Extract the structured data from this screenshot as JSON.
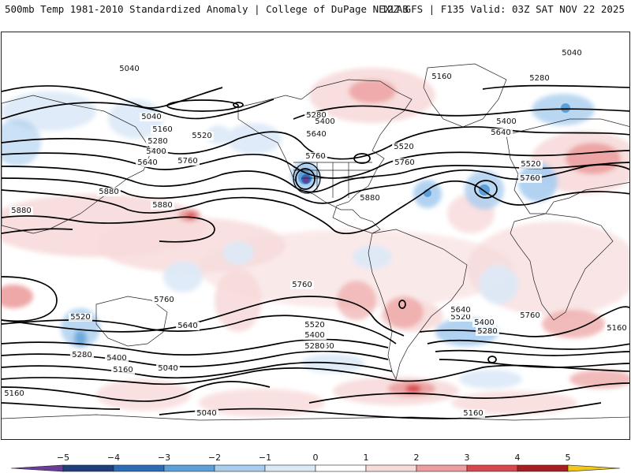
{
  "header": {
    "title_left": "500mb Temp 1981-2010 Standardized Anomaly | College of DuPage NEXLAB",
    "title_right": "12Z GFS | F135 Valid: 03Z SAT NOV 22 2025"
  },
  "map": {
    "contour_interval_labels": [
      "5040",
      "5160",
      "5280",
      "5400",
      "5520",
      "5640",
      "5760",
      "5880"
    ]
  },
  "contour_labels": [
    {
      "text": "5040"
    },
    {
      "text": "5040"
    },
    {
      "text": "5160"
    },
    {
      "text": "5280"
    },
    {
      "text": "5400"
    },
    {
      "text": "5520"
    },
    {
      "text": "5640"
    },
    {
      "text": "5760"
    },
    {
      "text": "5880"
    },
    {
      "text": "5880"
    },
    {
      "text": "5280"
    },
    {
      "text": "5400"
    },
    {
      "text": "5640"
    },
    {
      "text": "5760"
    },
    {
      "text": "5880"
    },
    {
      "text": "5520"
    },
    {
      "text": "5760"
    },
    {
      "text": "5040"
    },
    {
      "text": "5160"
    },
    {
      "text": "5280"
    },
    {
      "text": "5400"
    },
    {
      "text": "5640"
    },
    {
      "text": "5520"
    },
    {
      "text": "5760"
    },
    {
      "text": "5880"
    },
    {
      "text": "5760"
    },
    {
      "text": "5520"
    },
    {
      "text": "5640"
    },
    {
      "text": "5280"
    },
    {
      "text": "5400"
    },
    {
      "text": "5160"
    },
    {
      "text": "5040"
    },
    {
      "text": "5040"
    },
    {
      "text": "5760"
    },
    {
      "text": "5520"
    },
    {
      "text": "5400"
    },
    {
      "text": "5280"
    },
    {
      "text": "5160"
    },
    {
      "text": "5640"
    },
    {
      "text": "5520"
    },
    {
      "text": "5400"
    },
    {
      "text": "5280"
    },
    {
      "text": "5760"
    },
    {
      "text": "5160"
    },
    {
      "text": "5160"
    },
    {
      "text": "5160"
    }
  ],
  "colorbar": {
    "ticks": [
      "−5",
      "−4",
      "−3",
      "−2",
      "−1",
      "0",
      "1",
      "2",
      "3",
      "4",
      "5"
    ],
    "colors": [
      "#6a3d9a",
      "#1f3f7a",
      "#2b6cb5",
      "#5d9fd8",
      "#a9cdef",
      "#dbe9f7",
      "#ffffff",
      "#f7dada",
      "#ec9e9e",
      "#d8474c",
      "#a81c22",
      "#6b0a10",
      "#f2c61a"
    ]
  }
}
